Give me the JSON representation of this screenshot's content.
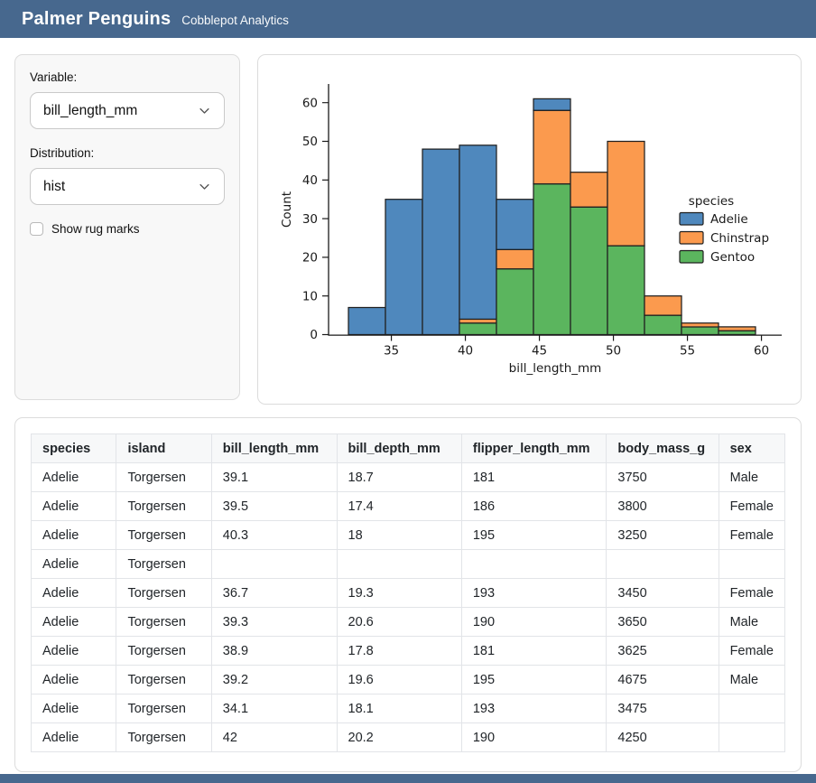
{
  "header": {
    "title": "Palmer Penguins",
    "subtitle": "Cobblepot Analytics"
  },
  "theme": {
    "header_bg": "#47688e",
    "card_bg": "#f8f8f8",
    "adelie_blue": "#4f88bd",
    "chinstrap_orange": "#fb9a4e",
    "gentoo_green": "#5bb55e"
  },
  "sidebar": {
    "variable_label": "Variable:",
    "variable_value": "bill_length_mm",
    "distribution_label": "Distribution:",
    "distribution_value": "hist",
    "rug_checkbox_label": "Show rug marks",
    "rug_checked": false
  },
  "chart_data": {
    "type": "histogram-stacked-bar",
    "title": "",
    "xlabel": "bill_length_mm",
    "ylabel": "Count",
    "legend_title": "species",
    "legend_position": "center-right",
    "grid": false,
    "bin_start": 32.1,
    "bin_width": 2.5,
    "x_ticks": [
      35,
      40,
      45,
      50,
      55,
      60
    ],
    "y_ticks": [
      0,
      10,
      20,
      30,
      40,
      50,
      60
    ],
    "xlim": [
      30.8,
      61.5
    ],
    "ylim": [
      0,
      64
    ],
    "stack_order_bottom_to_top": [
      "Gentoo",
      "Chinstrap",
      "Adelie"
    ],
    "series": [
      {
        "name": "Adelie",
        "color": "#4f88bd",
        "edge": "#202020",
        "values": [
          7,
          35,
          48,
          45,
          13,
          3,
          0,
          0,
          0,
          0,
          0
        ]
      },
      {
        "name": "Chinstrap",
        "color": "#fb9a4e",
        "edge": "#202020",
        "values": [
          0,
          0,
          0,
          1,
          5,
          19,
          9,
          27,
          5,
          1,
          1
        ]
      },
      {
        "name": "Gentoo",
        "color": "#5bb55e",
        "edge": "#202020",
        "values": [
          0,
          0,
          0,
          3,
          17,
          39,
          33,
          23,
          5,
          2,
          1
        ]
      }
    ],
    "stacked_totals": [
      7,
      35,
      48,
      49,
      35,
      61,
      42,
      50,
      10,
      3,
      2
    ]
  },
  "table": {
    "columns": [
      "species",
      "island",
      "bill_length_mm",
      "bill_depth_mm",
      "flipper_length_mm",
      "body_mass_g",
      "sex"
    ],
    "rows": [
      [
        "Adelie",
        "Torgersen",
        "39.1",
        "18.7",
        "181",
        "3750",
        "Male"
      ],
      [
        "Adelie",
        "Torgersen",
        "39.5",
        "17.4",
        "186",
        "3800",
        "Female"
      ],
      [
        "Adelie",
        "Torgersen",
        "40.3",
        "18",
        "195",
        "3250",
        "Female"
      ],
      [
        "Adelie",
        "Torgersen",
        "",
        "",
        "",
        "",
        ""
      ],
      [
        "Adelie",
        "Torgersen",
        "36.7",
        "19.3",
        "193",
        "3450",
        "Female"
      ],
      [
        "Adelie",
        "Torgersen",
        "39.3",
        "20.6",
        "190",
        "3650",
        "Male"
      ],
      [
        "Adelie",
        "Torgersen",
        "38.9",
        "17.8",
        "181",
        "3625",
        "Female"
      ],
      [
        "Adelie",
        "Torgersen",
        "39.2",
        "19.6",
        "195",
        "4675",
        "Male"
      ],
      [
        "Adelie",
        "Torgersen",
        "34.1",
        "18.1",
        "193",
        "3475",
        ""
      ],
      [
        "Adelie",
        "Torgersen",
        "42",
        "20.2",
        "190",
        "4250",
        ""
      ]
    ]
  }
}
